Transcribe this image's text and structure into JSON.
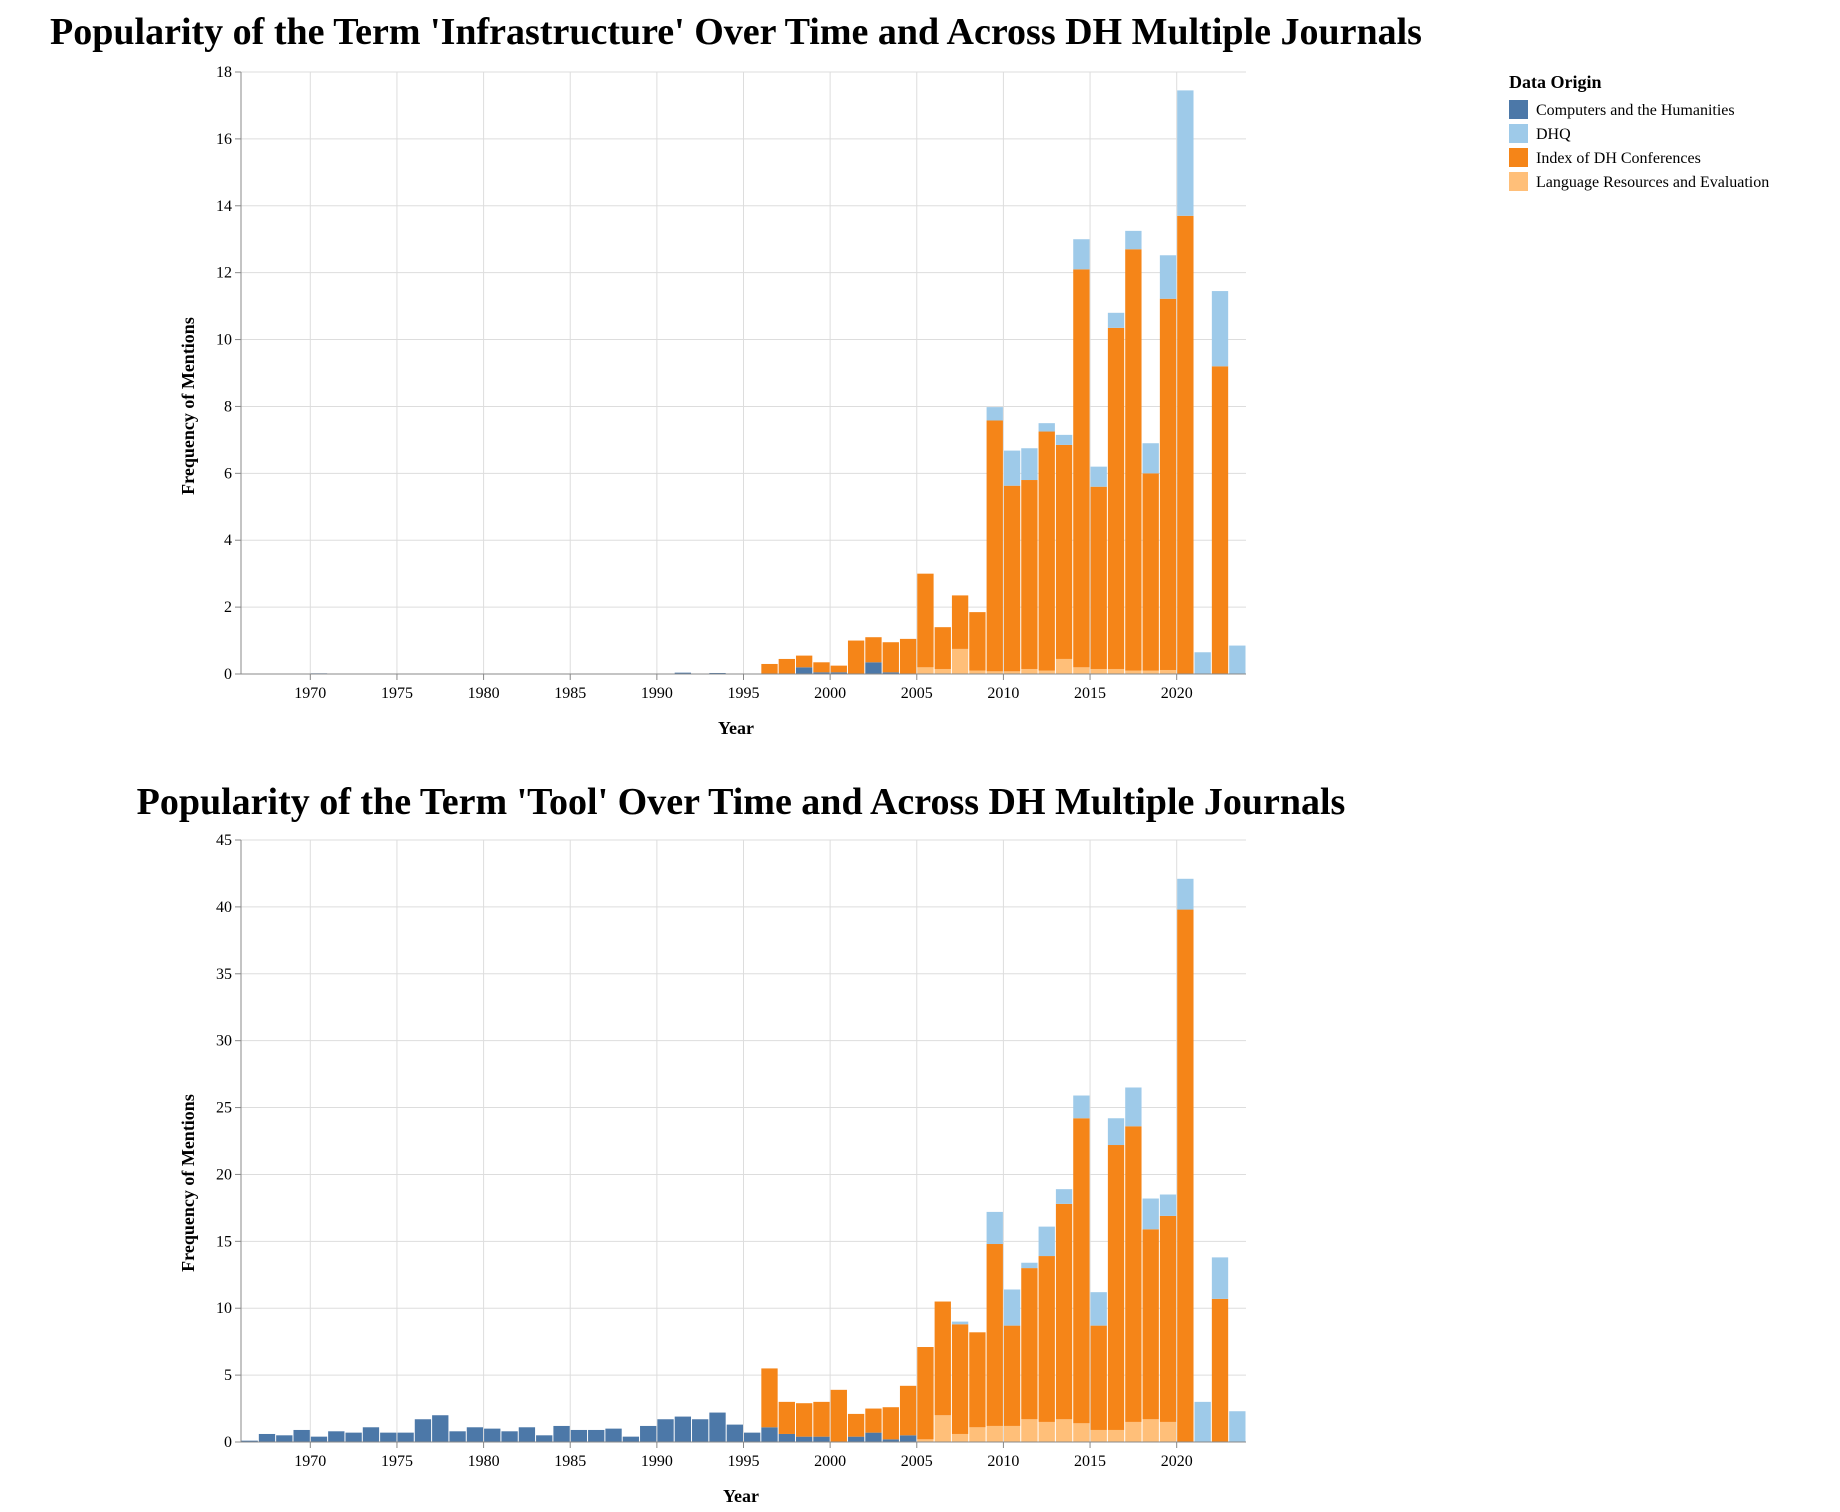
{
  "legend": {
    "title": "Data Origin",
    "entries": [
      {
        "name": "Computers and the Humanities",
        "color": "#4c78a8"
      },
      {
        "name": "DHQ",
        "color": "#9ecae9"
      },
      {
        "name": "Index of DH Conferences",
        "color": "#f58518"
      },
      {
        "name": "Language Resources and Evaluation",
        "color": "#ffbf79"
      }
    ],
    "placement": "top-right"
  },
  "chart_data": [
    {
      "type": "bar",
      "stacked": true,
      "title": "Popularity of the Term 'Infrastructure' Over Time and Across DH Multiple Journals",
      "xlabel": "Year",
      "ylabel": "Frequency of Mentions",
      "xlim": [
        1966,
        2024
      ],
      "ylim": [
        0,
        18
      ],
      "xticks": [
        1970,
        1975,
        1980,
        1985,
        1990,
        1995,
        2000,
        2005,
        2010,
        2015,
        2020
      ],
      "yticks": [
        0,
        2,
        4,
        6,
        8,
        10,
        12,
        14,
        16,
        18
      ],
      "grid": true,
      "series": [
        {
          "name": "Computers and the Humanities",
          "color": "#4c78a8",
          "points": [
            [
              1970,
              0.02
            ],
            [
              1991,
              0.04
            ],
            [
              1993,
              0.03
            ],
            [
              1998,
              0.2
            ],
            [
              1999,
              0.05
            ],
            [
              2000,
              0.05
            ],
            [
              2002,
              0.35
            ],
            [
              2003,
              0.05
            ]
          ]
        },
        {
          "name": "Language Resources and Evaluation",
          "color": "#ffbf79",
          "points": [
            [
              2005,
              0.2
            ],
            [
              2006,
              0.15
            ],
            [
              2007,
              0.75
            ],
            [
              2008,
              0.1
            ],
            [
              2009,
              0.08
            ],
            [
              2010,
              0.08
            ],
            [
              2011,
              0.15
            ],
            [
              2012,
              0.1
            ],
            [
              2013,
              0.45
            ],
            [
              2014,
              0.2
            ],
            [
              2015,
              0.15
            ],
            [
              2016,
              0.15
            ],
            [
              2017,
              0.1
            ],
            [
              2018,
              0.1
            ],
            [
              2019,
              0.12
            ]
          ]
        },
        {
          "name": "Index of DH Conferences",
          "color": "#f58518",
          "points": [
            [
              1996,
              0.3
            ],
            [
              1997,
              0.45
            ],
            [
              1998,
              0.35
            ],
            [
              1999,
              0.3
            ],
            [
              2000,
              0.2
            ],
            [
              2001,
              1.0
            ],
            [
              2002,
              0.75
            ],
            [
              2003,
              0.9
            ],
            [
              2004,
              1.05
            ],
            [
              2005,
              2.8
            ],
            [
              2006,
              1.25
            ],
            [
              2007,
              1.6
            ],
            [
              2008,
              1.75
            ],
            [
              2009,
              7.5
            ],
            [
              2010,
              5.55
            ],
            [
              2011,
              5.65
            ],
            [
              2012,
              7.15
            ],
            [
              2013,
              6.4
            ],
            [
              2014,
              11.9
            ],
            [
              2015,
              5.45
            ],
            [
              2016,
              10.2
            ],
            [
              2017,
              12.6
            ],
            [
              2018,
              5.9
            ],
            [
              2019,
              11.1
            ],
            [
              2020,
              13.7
            ],
            [
              2022,
              9.2
            ]
          ]
        },
        {
          "name": "DHQ",
          "color": "#9ecae9",
          "points": [
            [
              2009,
              0.4
            ],
            [
              2010,
              1.05
            ],
            [
              2011,
              0.95
            ],
            [
              2012,
              0.25
            ],
            [
              2013,
              0.3
            ],
            [
              2014,
              0.9
            ],
            [
              2015,
              0.6
            ],
            [
              2016,
              0.45
            ],
            [
              2017,
              0.55
            ],
            [
              2018,
              0.9
            ],
            [
              2019,
              1.3
            ],
            [
              2020,
              3.75
            ],
            [
              2021,
              0.65
            ],
            [
              2022,
              2.25
            ],
            [
              2023,
              0.85
            ]
          ]
        }
      ]
    },
    {
      "type": "bar",
      "stacked": true,
      "title": "Popularity of the Term 'Tool' Over Time and Across DH Multiple Journals",
      "xlabel": "Year",
      "ylabel": "Frequency of Mentions",
      "xlim": [
        1966,
        2024
      ],
      "ylim": [
        0,
        45
      ],
      "xticks": [
        1970,
        1975,
        1980,
        1985,
        1990,
        1995,
        2000,
        2005,
        2010,
        2015,
        2020
      ],
      "yticks": [
        0,
        5,
        10,
        15,
        20,
        25,
        30,
        35,
        40,
        45
      ],
      "grid": true,
      "series": [
        {
          "name": "Computers and the Humanities",
          "color": "#4c78a8",
          "points": [
            [
              1966,
              0.1
            ],
            [
              1967,
              0.6
            ],
            [
              1968,
              0.5
            ],
            [
              1969,
              0.9
            ],
            [
              1970,
              0.4
            ],
            [
              1971,
              0.8
            ],
            [
              1972,
              0.7
            ],
            [
              1973,
              1.1
            ],
            [
              1974,
              0.7
            ],
            [
              1975,
              0.7
            ],
            [
              1976,
              1.7
            ],
            [
              1977,
              2.0
            ],
            [
              1978,
              0.8
            ],
            [
              1979,
              1.1
            ],
            [
              1980,
              1.0
            ],
            [
              1981,
              0.8
            ],
            [
              1982,
              1.1
            ],
            [
              1983,
              0.5
            ],
            [
              1984,
              1.2
            ],
            [
              1985,
              0.9
            ],
            [
              1986,
              0.9
            ],
            [
              1987,
              1.0
            ],
            [
              1988,
              0.4
            ],
            [
              1989,
              1.2
            ],
            [
              1990,
              1.7
            ],
            [
              1991,
              1.9
            ],
            [
              1992,
              1.7
            ],
            [
              1993,
              2.2
            ],
            [
              1994,
              1.3
            ],
            [
              1995,
              0.7
            ],
            [
              1996,
              1.1
            ],
            [
              1997,
              0.6
            ],
            [
              1998,
              0.4
            ],
            [
              1999,
              0.4
            ],
            [
              2001,
              0.4
            ],
            [
              2002,
              0.7
            ],
            [
              2003,
              0.2
            ],
            [
              2004,
              0.5
            ]
          ]
        },
        {
          "name": "Language Resources and Evaluation",
          "color": "#ffbf79",
          "points": [
            [
              2005,
              0.2
            ],
            [
              2006,
              2.0
            ],
            [
              2007,
              0.6
            ],
            [
              2008,
              1.1
            ],
            [
              2009,
              1.2
            ],
            [
              2010,
              1.2
            ],
            [
              2011,
              1.7
            ],
            [
              2012,
              1.5
            ],
            [
              2013,
              1.7
            ],
            [
              2014,
              1.4
            ],
            [
              2015,
              0.9
            ],
            [
              2016,
              0.9
            ],
            [
              2017,
              1.5
            ],
            [
              2018,
              1.7
            ],
            [
              2019,
              1.5
            ]
          ]
        },
        {
          "name": "Index of DH Conferences",
          "color": "#f58518",
          "points": [
            [
              1996,
              4.4
            ],
            [
              1997,
              2.4
            ],
            [
              1998,
              2.5
            ],
            [
              1999,
              2.6
            ],
            [
              2000,
              3.9
            ],
            [
              2001,
              1.7
            ],
            [
              2002,
              1.8
            ],
            [
              2003,
              2.4
            ],
            [
              2004,
              3.7
            ],
            [
              2005,
              6.9
            ],
            [
              2006,
              8.5
            ],
            [
              2007,
              8.2
            ],
            [
              2008,
              7.1
            ],
            [
              2009,
              13.6
            ],
            [
              2010,
              7.5
            ],
            [
              2011,
              11.3
            ],
            [
              2012,
              12.4
            ],
            [
              2013,
              16.1
            ],
            [
              2014,
              22.8
            ],
            [
              2015,
              7.8
            ],
            [
              2016,
              21.3
            ],
            [
              2017,
              22.1
            ],
            [
              2018,
              14.2
            ],
            [
              2019,
              15.4
            ],
            [
              2020,
              39.8
            ],
            [
              2022,
              10.7
            ]
          ]
        },
        {
          "name": "DHQ",
          "color": "#9ecae9",
          "points": [
            [
              2007,
              0.2
            ],
            [
              2009,
              2.4
            ],
            [
              2010,
              2.7
            ],
            [
              2011,
              0.4
            ],
            [
              2012,
              2.2
            ],
            [
              2013,
              1.1
            ],
            [
              2014,
              1.7
            ],
            [
              2015,
              2.5
            ],
            [
              2016,
              2.0
            ],
            [
              2017,
              2.9
            ],
            [
              2018,
              2.3
            ],
            [
              2019,
              1.6
            ],
            [
              2020,
              2.3
            ],
            [
              2021,
              3.0
            ],
            [
              2022,
              3.1
            ],
            [
              2023,
              2.3
            ]
          ]
        }
      ]
    }
  ]
}
